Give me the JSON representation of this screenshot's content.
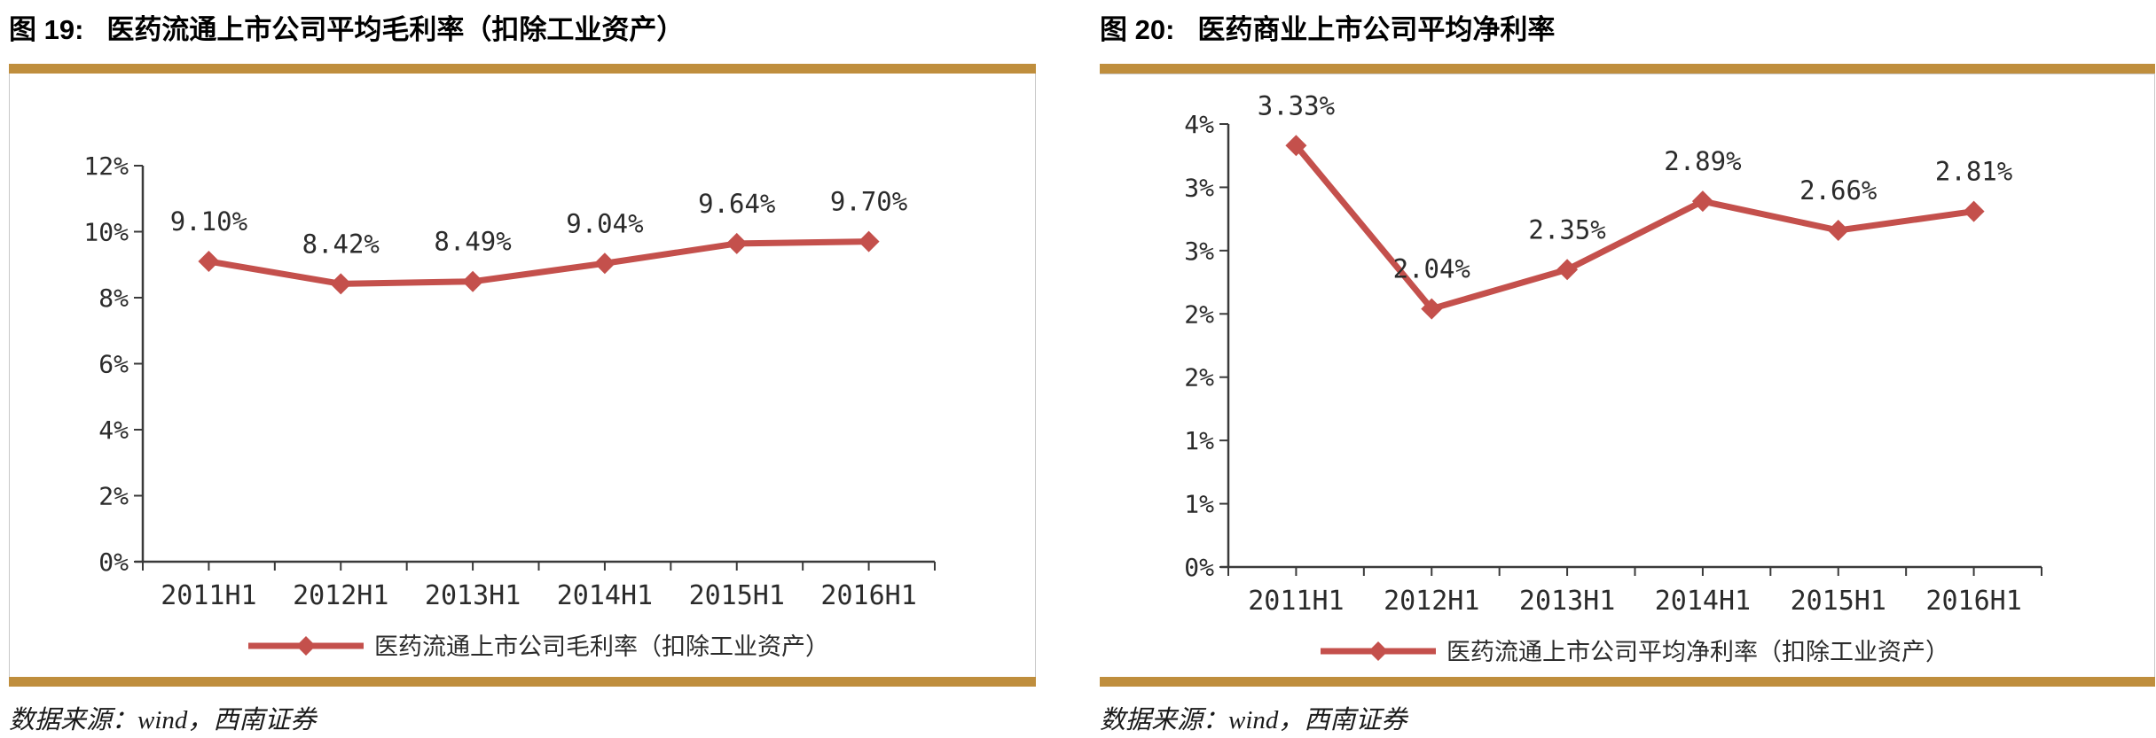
{
  "colors": {
    "series_red": "#C4504C",
    "gold_rule": "#BF8E3D",
    "axis": "#3a3a3a",
    "frame_gray": "#c9c9c9"
  },
  "panels": [
    {
      "figure_label": "图 19:",
      "title": "医药流通上市公司平均毛利率（扣除工业资产）",
      "source": "数据来源：wind，西南证券"
    },
    {
      "figure_label": "图 20:",
      "title": "医药商业上市公司平均净利率",
      "source": "数据来源：wind，西南证券"
    }
  ],
  "chart_data": [
    {
      "type": "line",
      "title": "医药流通上市公司平均毛利率（扣除工业资产）",
      "categories": [
        "2011H1",
        "2012H1",
        "2013H1",
        "2014H1",
        "2015H1",
        "2016H1"
      ],
      "series": [
        {
          "name": "医药流通上市公司毛利率（扣除工业资产）",
          "values": [
            9.1,
            8.42,
            8.49,
            9.04,
            9.64,
            9.7
          ]
        }
      ],
      "data_labels": [
        "9.10%",
        "8.42%",
        "8.49%",
        "9.04%",
        "9.64%",
        "9.70%"
      ],
      "xlabel": "",
      "ylabel": "",
      "ylim": [
        0,
        12
      ],
      "ytick_labels": [
        "0%",
        "2%",
        "4%",
        "6%",
        "8%",
        "10%",
        "12%"
      ],
      "grid": false,
      "marker": "diamond",
      "legend_position": "bottom"
    },
    {
      "type": "line",
      "title": "医药商业上市公司平均净利率",
      "categories": [
        "2011H1",
        "2012H1",
        "2013H1",
        "2014H1",
        "2015H1",
        "2016H1"
      ],
      "series": [
        {
          "name": "医药流通上市公司平均净利率（扣除工业资产）",
          "values": [
            3.33,
            2.04,
            2.35,
            2.89,
            2.66,
            2.81
          ]
        }
      ],
      "data_labels": [
        "3.33%",
        "2.04%",
        "2.35%",
        "2.89%",
        "2.66%",
        "2.81%"
      ],
      "xlabel": "",
      "ylabel": "",
      "ylim": [
        0,
        3.5
      ],
      "ytick_labels": [
        "0%",
        "1%",
        "1%",
        "2%",
        "2%",
        "3%",
        "3%",
        "4%"
      ],
      "grid": false,
      "marker": "diamond",
      "legend_position": "bottom"
    }
  ]
}
